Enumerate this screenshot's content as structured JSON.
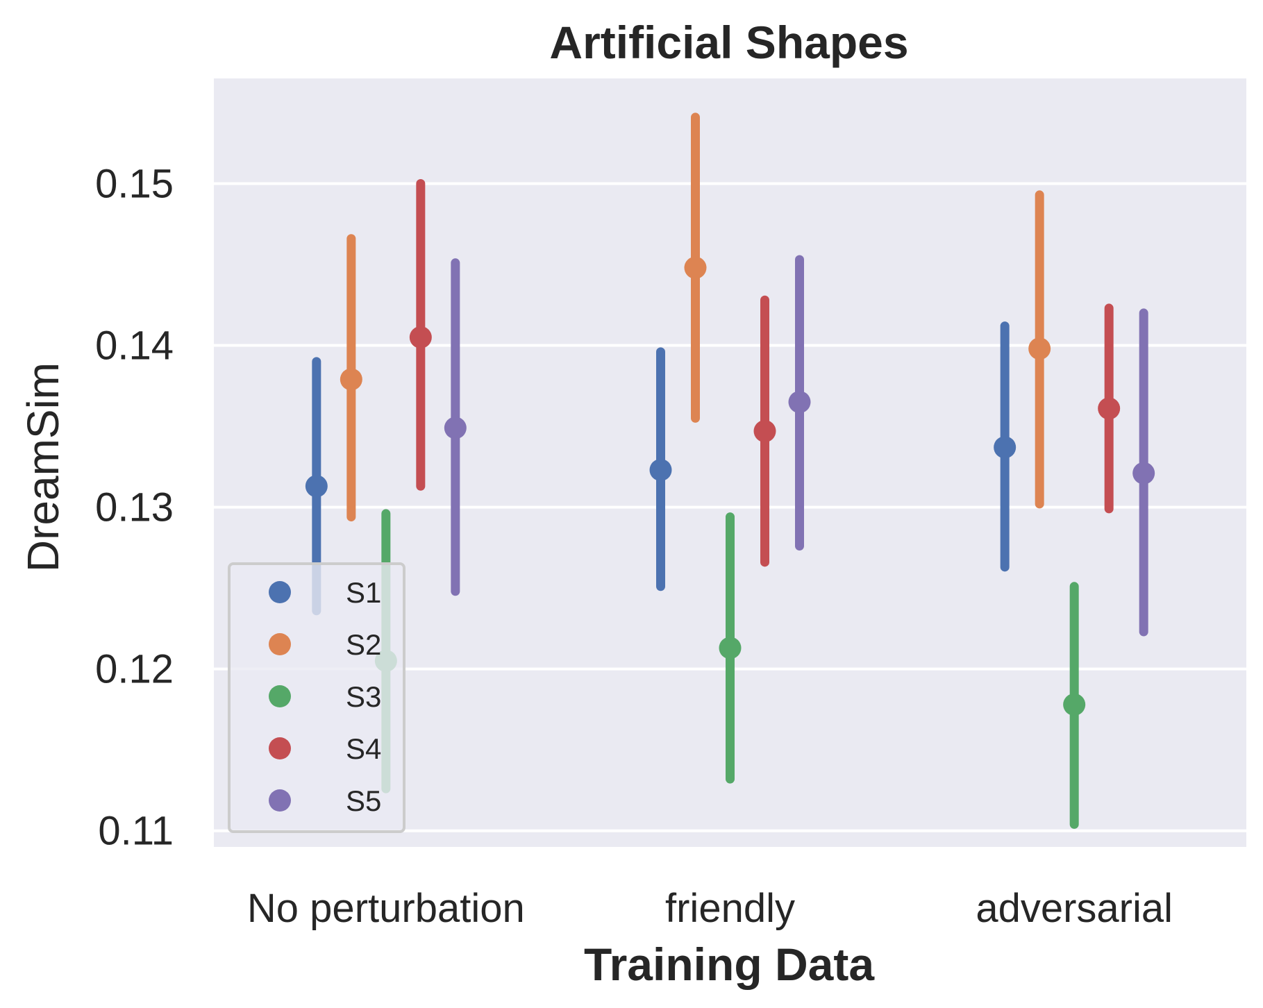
{
  "chart_data": {
    "type": "scatter",
    "title": "Artificial Shapes",
    "xlabel": "Training Data",
    "ylabel": "DreamSim",
    "categories": [
      "No perturbation",
      "friendly",
      "adversarial"
    ],
    "yticks": [
      "0.11",
      "0.12",
      "0.13",
      "0.14",
      "0.15"
    ],
    "ylim": [
      0.109,
      0.1565
    ],
    "grid": true,
    "legend_position": "lower-left",
    "series": [
      {
        "name": "S1",
        "color": "#4c72b0",
        "values": [
          0.1313,
          0.1323,
          0.1337
        ],
        "ci_low": [
          0.1236,
          0.1251,
          0.1263
        ],
        "ci_high": [
          0.139,
          0.1396,
          0.1412
        ]
      },
      {
        "name": "S2",
        "color": "#dd8452",
        "values": [
          0.1379,
          0.1448,
          0.1398
        ],
        "ci_low": [
          0.1294,
          0.1355,
          0.1302
        ],
        "ci_high": [
          0.1466,
          0.1541,
          0.1493
        ]
      },
      {
        "name": "S3",
        "color": "#55a868",
        "values": [
          0.1205,
          0.1213,
          0.1178
        ],
        "ci_low": [
          0.1126,
          0.1132,
          0.1104
        ],
        "ci_high": [
          0.1296,
          0.1294,
          0.1251
        ]
      },
      {
        "name": "S4",
        "color": "#c44e52",
        "values": [
          0.1405,
          0.1347,
          0.1361
        ],
        "ci_low": [
          0.1313,
          0.1266,
          0.1299
        ],
        "ci_high": [
          0.15,
          0.1428,
          0.1423
        ]
      },
      {
        "name": "S5",
        "color": "#8172b3",
        "values": [
          0.1349,
          0.1365,
          0.1321
        ],
        "ci_low": [
          0.1248,
          0.1276,
          0.1223
        ],
        "ci_high": [
          0.1451,
          0.1453,
          0.142
        ]
      }
    ]
  }
}
